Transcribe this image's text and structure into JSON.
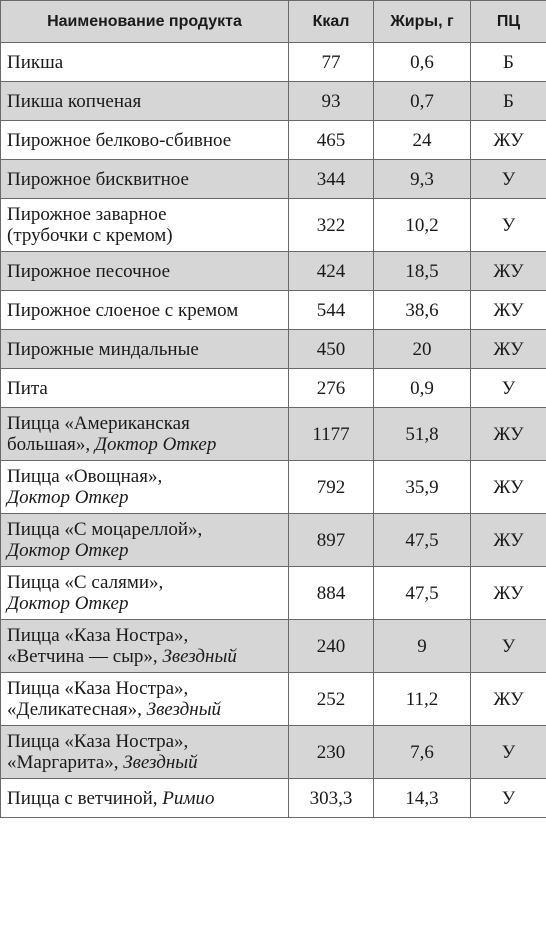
{
  "table": {
    "headers": {
      "name": "Наименование продукта",
      "kcal": "Ккал",
      "fat": "Жиры, г",
      "pc": "ПЦ"
    },
    "rows": [
      {
        "line1": "Пикша",
        "line2": "",
        "line2_brand": "",
        "kcal": "77",
        "fat": "0,6",
        "pc": "Б"
      },
      {
        "line1": "Пикша копченая",
        "line2": "",
        "line2_brand": "",
        "kcal": "93",
        "fat": "0,7",
        "pc": "Б"
      },
      {
        "line1": "Пирожное белково-сбивное",
        "line2": "",
        "line2_brand": "",
        "kcal": "465",
        "fat": "24",
        "pc": "ЖУ"
      },
      {
        "line1": "Пирожное бисквитное",
        "line2": "",
        "line2_brand": "",
        "kcal": "344",
        "fat": "9,3",
        "pc": "У"
      },
      {
        "line1": "Пирожное заварное",
        "line2": "(трубочки с кремом)",
        "line2_brand": "",
        "kcal": "322",
        "fat": "10,2",
        "pc": "У"
      },
      {
        "line1": "Пирожное песочное",
        "line2": "",
        "line2_brand": "",
        "kcal": "424",
        "fat": "18,5",
        "pc": "ЖУ"
      },
      {
        "line1": "Пирожное слоеное с кремом",
        "line2": "",
        "line2_brand": "",
        "kcal": "544",
        "fat": "38,6",
        "pc": "ЖУ"
      },
      {
        "line1": "Пирожные миндальные",
        "line2": "",
        "line2_brand": "",
        "kcal": "450",
        "fat": "20",
        "pc": "ЖУ"
      },
      {
        "line1": "Пита",
        "line2": "",
        "line2_brand": "",
        "kcal": "276",
        "fat": "0,9",
        "pc": "У"
      },
      {
        "line1": "Пицца «Американская",
        "line2": "большая», ",
        "line2_brand": "Доктор Откер",
        "kcal": "1177",
        "fat": "51,8",
        "pc": "ЖУ"
      },
      {
        "line1": "Пицца «Овощная»,",
        "line2": "",
        "line2_brand": "Доктор Откер",
        "kcal": "792",
        "fat": "35,9",
        "pc": "ЖУ"
      },
      {
        "line1": "Пицца «С моцареллой»,",
        "line2": "",
        "line2_brand": "Доктор Откер",
        "kcal": "897",
        "fat": "47,5",
        "pc": "ЖУ"
      },
      {
        "line1": "Пицца «С салями»,",
        "line2": "",
        "line2_brand": "Доктор Откер",
        "kcal": "884",
        "fat": "47,5",
        "pc": "ЖУ"
      },
      {
        "line1": "Пицца «Каза Ностра»,",
        "line2": "«Ветчина — сыр», ",
        "line2_brand": "Звездный",
        "kcal": "240",
        "fat": "9",
        "pc": "У"
      },
      {
        "line1": "Пицца «Каза Ностра»,",
        "line2": "«Деликатесная», ",
        "line2_brand": "Звездный",
        "kcal": "252",
        "fat": "11,2",
        "pc": "ЖУ"
      },
      {
        "line1": "Пицца «Каза Ностра»,",
        "line2": "«Маргарита», ",
        "line2_brand": "Звездный",
        "kcal": "230",
        "fat": "7,6",
        "pc": "У"
      }
    ],
    "last_row": {
      "text": "Пицца с ветчиной, ",
      "brand": "Римио",
      "kcal": "303,3",
      "fat": "14,3",
      "pc": "У"
    }
  }
}
